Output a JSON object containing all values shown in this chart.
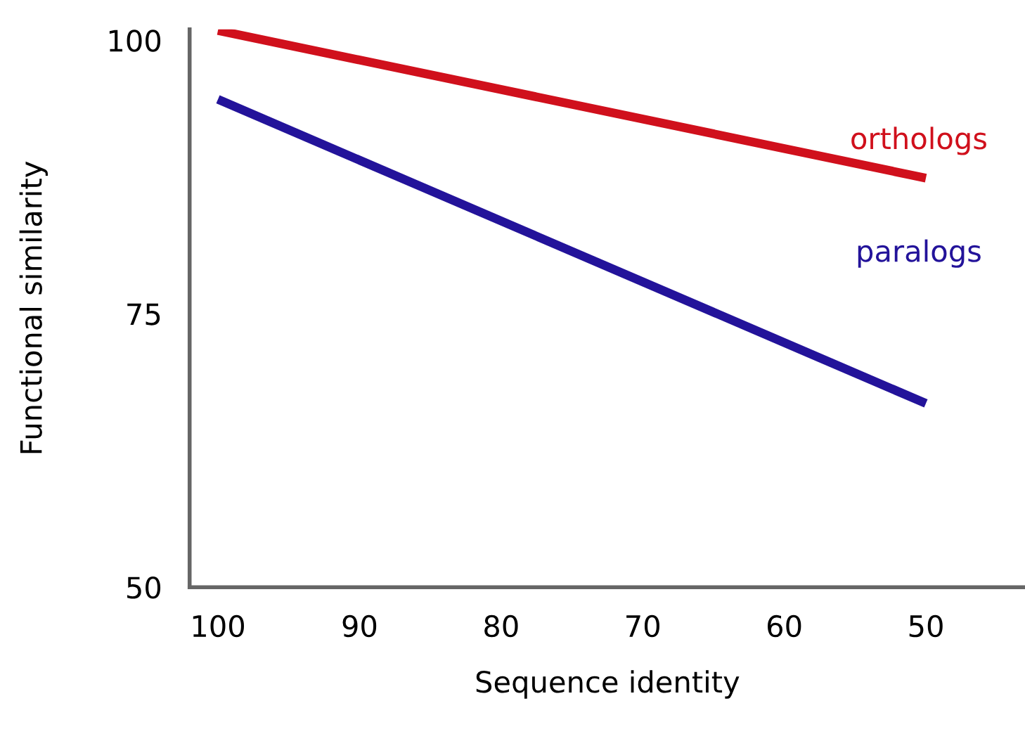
{
  "chart_data": {
    "type": "line",
    "xlabel": "Sequence identity",
    "ylabel": "Functional similarity",
    "x": [
      100,
      50
    ],
    "series": [
      {
        "name": "orthologs",
        "color": "#d0101c",
        "values": [
          100.9,
          87.4
        ]
      },
      {
        "name": "paralogs",
        "color": "#23139a",
        "values": [
          94.6,
          66.8
        ]
      }
    ],
    "xlim": [
      102,
      43
    ],
    "ylim": [
      50,
      101
    ],
    "xticks": [
      100,
      90,
      80,
      70,
      60,
      50
    ],
    "yticks": [
      50,
      75,
      100
    ],
    "grid": false,
    "legend": false,
    "marker": "none",
    "line_style": "solid"
  }
}
